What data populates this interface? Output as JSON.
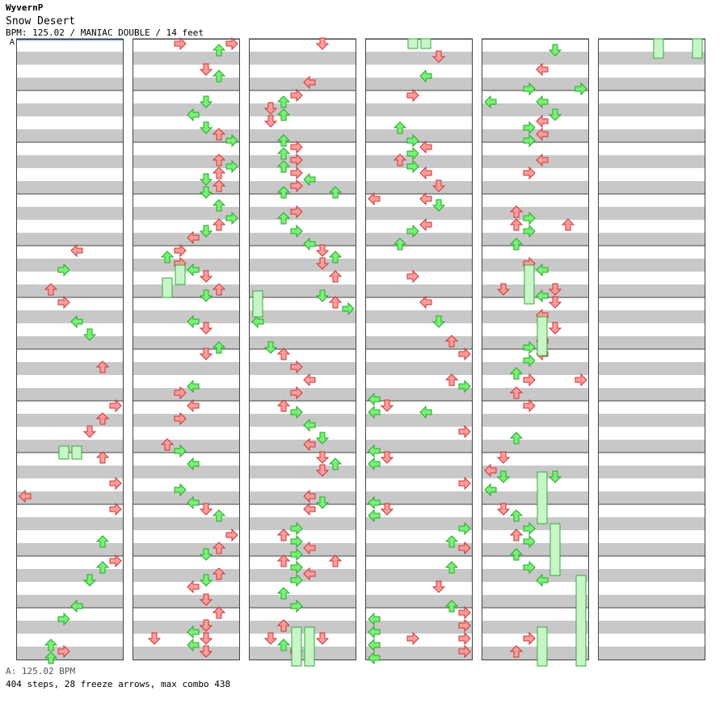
{
  "header": {
    "author": "WyvernP",
    "song_title": "Snow Desert",
    "chart_info": "BPM: 125.02 / MANIAC DOUBLE / 14 feet",
    "bpm_marker": "A"
  },
  "footer": {
    "bpm_legend": "A: 125.02 BPM",
    "stats": "404 steps, 28 freeze arrows, max combo 438"
  },
  "chart_data": {
    "type": "step-chart",
    "mode": "MANIAC DOUBLE",
    "difficulty_feet": 14,
    "bpm": 125.02,
    "total_steps": 404,
    "freeze_arrows": 28,
    "max_combo": 438,
    "columns": 6,
    "measures_per_column": 12,
    "lanes": [
      "P1-left",
      "P1-down",
      "P1-up",
      "P1-right",
      "P2-left",
      "P2-down",
      "P2-up",
      "P2-right"
    ],
    "colors": {
      "red_arrow": "#ff9d9d",
      "green_arrow": "#7af07a",
      "freeze": "#c8f5c8",
      "stripe": "#c8c8c8"
    }
  }
}
